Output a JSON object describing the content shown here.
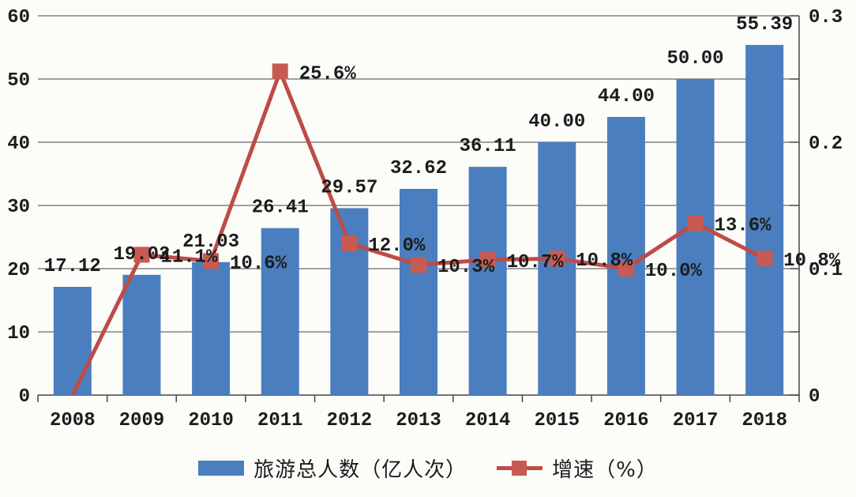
{
  "background": "#fcfcf9",
  "text_color": "#1c1c1c",
  "axis_color": "#454545",
  "chart_data": {
    "type": "combo",
    "title": "",
    "categories": [
      "2008",
      "2009",
      "2010",
      "2011",
      "2012",
      "2013",
      "2014",
      "2015",
      "2016",
      "2017",
      "2018"
    ],
    "series": [
      {
        "name": "旅游总人数（亿人次）",
        "type": "bar",
        "axis": "left",
        "color": "#4a7ebe",
        "values": [
          17.12,
          19.02,
          21.03,
          26.41,
          29.57,
          32.62,
          36.11,
          40.0,
          44.0,
          50.0,
          55.39
        ],
        "labels": [
          "17.12",
          "19.02",
          "21.03",
          "26.41",
          "29.57",
          "32.62",
          "36.11",
          "40.00",
          "44.00",
          "50.00",
          "55.39"
        ]
      },
      {
        "name": "增速（%）",
        "type": "line",
        "axis": "right",
        "color": "#be4b48",
        "marker_color": "#c75b53",
        "values": [
          0,
          0.111,
          0.106,
          0.256,
          0.12,
          0.103,
          0.107,
          0.108,
          0.1,
          0.136,
          0.108
        ],
        "labels": [
          "",
          "11.1%",
          "10.6%",
          "25.6%",
          "12.0%",
          "10.3%",
          "10.7%",
          "10.8%",
          "10.0%",
          "13.6%",
          "10.8%"
        ]
      }
    ],
    "left_axis": {
      "min": 0,
      "max": 60,
      "tick_step": 10,
      "labels": [
        "0",
        "10",
        "20",
        "30",
        "40",
        "50",
        "60"
      ]
    },
    "right_axis": {
      "min": 0,
      "max": 0.3,
      "tick_step": 0.05,
      "label_step": 0.1,
      "labels": [
        "0",
        "0.1",
        "0.2",
        "0.3"
      ]
    },
    "grid": true,
    "legend_position": "bottom"
  }
}
